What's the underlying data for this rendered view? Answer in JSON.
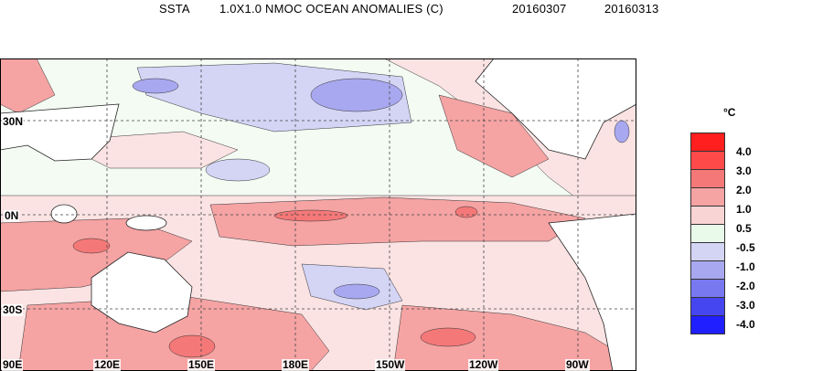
{
  "title": {
    "field": "SSTA",
    "description": "1.0X1.0 NMOC OCEAN ANOMALIES (C)",
    "start_date": "20160307",
    "end_date": "20160313"
  },
  "map": {
    "lat_labels": [
      "30N",
      "0N",
      "30S"
    ],
    "lon_labels": [
      "90E",
      "120E",
      "150E",
      "180E",
      "150W",
      "120W",
      "90W"
    ],
    "grid": true
  },
  "legend": {
    "unit": "°C",
    "ticks": [
      "4.0",
      "3.0",
      "2.0",
      "1.0",
      "0.5",
      "-0.5",
      "-1.0",
      "-2.0",
      "-3.0",
      "-4.0"
    ],
    "colors": [
      "#ff1f1f",
      "#ff4a4a",
      "#f57878",
      "#f5a3a3",
      "#f9d4d4",
      "#eafaea",
      "#d4d4f5",
      "#a8a8f0",
      "#7878f0",
      "#4646f0",
      "#1f1fff"
    ]
  }
}
